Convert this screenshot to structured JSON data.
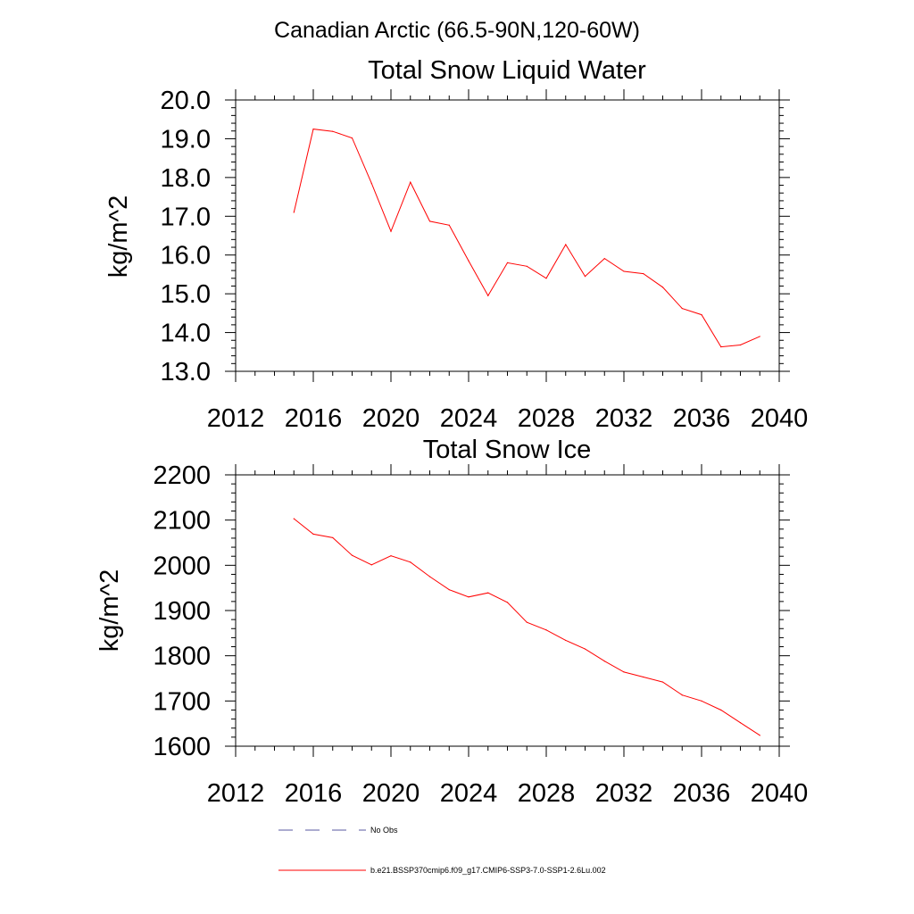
{
  "page": {
    "region_title": "Canadian Arctic (66.5-90N,120-60W)"
  },
  "chart_data": [
    {
      "type": "line",
      "title": "Total Snow Liquid Water",
      "xlabel": "",
      "ylabel": "kg/m^2",
      "xlim": [
        2012,
        2040
      ],
      "ylim": [
        13,
        20
      ],
      "xticks": [
        2012,
        2016,
        2020,
        2024,
        2028,
        2032,
        2036,
        2040
      ],
      "xtick_labels": [
        "2012",
        "2016",
        "2020",
        "2024",
        "2028",
        "2032",
        "2036",
        "2040"
      ],
      "yticks": [
        13,
        14,
        15,
        16,
        17,
        18,
        19,
        20
      ],
      "ytick_labels": [
        "13.0",
        "14.0",
        "15.0",
        "16.0",
        "17.0",
        "18.0",
        "19.0",
        "20.0"
      ],
      "series": [
        {
          "name": "b.e21.BSSP370cmip6.f09_g17.CMIP6-SSP3-7.0-SSP1-2.6Lu.002",
          "color": "#ff0000",
          "x": [
            2015,
            2016,
            2017,
            2018,
            2019,
            2020,
            2021,
            2022,
            2023,
            2024,
            2025,
            2026,
            2027,
            2028,
            2029,
            2030,
            2031,
            2032,
            2033,
            2034,
            2035,
            2036,
            2037,
            2038,
            2039
          ],
          "y": [
            17.1,
            19.25,
            19.19,
            19.02,
            17.85,
            16.61,
            17.88,
            16.87,
            16.77,
            15.85,
            14.95,
            15.8,
            15.71,
            15.4,
            16.27,
            15.45,
            15.91,
            15.58,
            15.52,
            15.17,
            14.62,
            14.46,
            13.63,
            13.68,
            13.9
          ]
        }
      ]
    },
    {
      "type": "line",
      "title": "Total Snow Ice",
      "xlabel": "",
      "ylabel": "kg/m^2",
      "xlim": [
        2012,
        2040
      ],
      "ylim": [
        1600,
        2200
      ],
      "xticks": [
        2012,
        2016,
        2020,
        2024,
        2028,
        2032,
        2036,
        2040
      ],
      "xtick_labels": [
        "2012",
        "2016",
        "2020",
        "2024",
        "2028",
        "2032",
        "2036",
        "2040"
      ],
      "yticks": [
        1600,
        1700,
        1800,
        1900,
        2000,
        2100,
        2200
      ],
      "ytick_labels": [
        "1600",
        "1700",
        "1800",
        "1900",
        "2000",
        "2100",
        "2200"
      ],
      "series": [
        {
          "name": "b.e21.BSSP370cmip6.f09_g17.CMIP6-SSP3-7.0-SSP1-2.6Lu.002",
          "color": "#ff0000",
          "x": [
            2015,
            2016,
            2017,
            2018,
            2019,
            2020,
            2021,
            2022,
            2023,
            2024,
            2025,
            2026,
            2027,
            2028,
            2029,
            2030,
            2031,
            2032,
            2033,
            2034,
            2035,
            2036,
            2037,
            2038,
            2039
          ],
          "y": [
            2103,
            2069,
            2061,
            2022,
            2001,
            2021,
            2007,
            1975,
            1946,
            1930,
            1939,
            1918,
            1874,
            1857,
            1834,
            1815,
            1788,
            1764,
            1753,
            1742,
            1713,
            1700,
            1680,
            1652,
            1624
          ]
        }
      ]
    }
  ],
  "legend": {
    "placement": "bottom",
    "entries": [
      {
        "label": "No Obs",
        "color": "#5a5aa0",
        "style": "dashed"
      },
      {
        "label": "b.e21.BSSP370cmip6.f09_g17.CMIP6-SSP3-7.0-SSP1-2.6Lu.002",
        "color": "#ff0000",
        "style": "solid"
      }
    ]
  }
}
